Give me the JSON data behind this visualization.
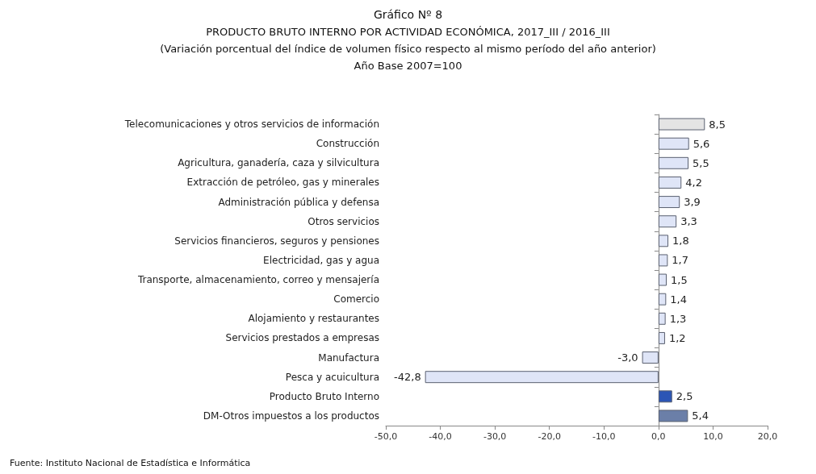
{
  "chart_data": {
    "type": "bar",
    "orientation": "horizontal",
    "title": "Gráfico Nº 8",
    "subtitle": "PRODUCTO BRUTO INTERNO POR ACTIVIDAD ECONÓMICA, 2017_III / 2016_III\n(Variación porcentual del índice de volumen físico respecto al mismo período del año anterior)\nAño Base 2007=100",
    "categories": [
      "Telecomunicaciones y otros servicios de información",
      "Construcción",
      "Agricultura, ganadería, caza y silvicultura",
      "Extracción de petróleo, gas y minerales",
      "Administración pública y defensa",
      "Otros servicios",
      "Servicios financieros, seguros y pensiones",
      "Electricidad, gas y agua",
      "Transporte, almacenamiento, correo y mensajería",
      "Comercio",
      "Alojamiento y restaurantes",
      "Servicios prestados a empresas",
      "Manufactura",
      "Pesca y acuicultura",
      "Producto Bruto Interno",
      "DM-Otros impuestos a los productos"
    ],
    "values": [
      8.5,
      5.6,
      5.5,
      4.2,
      3.9,
      3.3,
      1.8,
      1.7,
      1.5,
      1.4,
      1.3,
      1.2,
      -3.0,
      -42.8,
      2.5,
      5.4
    ],
    "value_labels": [
      "8,5",
      "5,6",
      "5,5",
      "4,2",
      "3,9",
      "3,3",
      "1,8",
      "1,7",
      "1,5",
      "1,4",
      "1,3",
      "1,2",
      "-3,0",
      "-42,8",
      "2,5",
      "5,4"
    ],
    "colors": [
      "#e4e4e4",
      "#dfe5f7",
      "#dfe5f7",
      "#dfe5f7",
      "#dfe5f7",
      "#dfe5f7",
      "#dfe5f7",
      "#dfe5f7",
      "#dfe5f7",
      "#dfe5f7",
      "#dfe5f7",
      "#dfe5f7",
      "#dfe5f7",
      "#dfe5f7",
      "#2b55b5",
      "#6b7fa8"
    ],
    "xlim": [
      -50,
      20
    ],
    "xticks": [
      {
        "value": -50,
        "label": "-50,0"
      },
      {
        "value": -40,
        "label": "-40,0"
      },
      {
        "value": -30,
        "label": "-30,0"
      },
      {
        "value": -20,
        "label": "-20,0"
      },
      {
        "value": -10,
        "label": "-10,0"
      },
      {
        "value": 0,
        "label": "0,0"
      },
      {
        "value": 10,
        "label": "10,0"
      },
      {
        "value": 20,
        "label": "20,0"
      }
    ],
    "annotations": [
      "Fuente: Instituto Nacional de Estadística e Informática"
    ]
  }
}
